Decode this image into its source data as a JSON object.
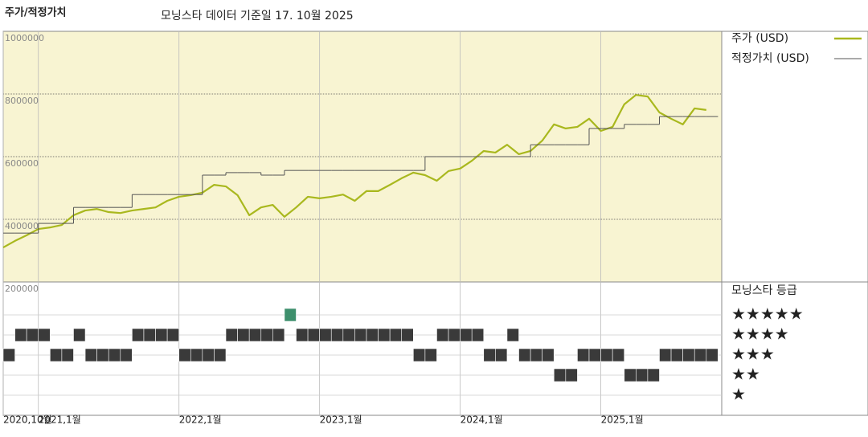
{
  "chart_data": {
    "type": "line",
    "title": "주가/적정가치",
    "subtitle": "모닝스타 데이터 기준일 17. 10월 2025",
    "x": [
      "2020-10",
      "2020-11",
      "2020-12",
      "2021-01",
      "2021-02",
      "2021-03",
      "2021-04",
      "2021-05",
      "2021-06",
      "2021-07",
      "2021-08",
      "2021-09",
      "2021-10",
      "2021-11",
      "2021-12",
      "2022-01",
      "2022-02",
      "2022-03",
      "2022-04",
      "2022-05",
      "2022-06",
      "2022-07",
      "2022-08",
      "2022-09",
      "2022-10",
      "2022-11",
      "2022-12",
      "2023-01",
      "2023-02",
      "2023-03",
      "2023-04",
      "2023-05",
      "2023-06",
      "2023-07",
      "2023-08",
      "2023-09",
      "2023-10",
      "2023-11",
      "2023-12",
      "2024-01",
      "2024-02",
      "2024-03",
      "2024-04",
      "2024-05",
      "2024-06",
      "2024-07",
      "2024-08",
      "2024-09",
      "2024-10",
      "2024-11",
      "2024-12",
      "2025-01",
      "2025-02",
      "2025-03",
      "2025-04",
      "2025-05",
      "2025-06",
      "2025-07",
      "2025-08",
      "2025-09",
      "2025-10"
    ],
    "series": [
      {
        "name": "주가 (USD)",
        "color": "#a9b81e",
        "values": [
          310000,
          331000,
          349000,
          369000,
          374000,
          382000,
          413000,
          428000,
          433000,
          423000,
          420000,
          428000,
          433000,
          438000,
          459000,
          472000,
          477000,
          485000,
          510000,
          505000,
          477000,
          413000,
          438000,
          446000,
          408000,
          438000,
          472000,
          467000,
          472000,
          479000,
          459000,
          490000,
          490000,
          510000,
          531000,
          549000,
          541000,
          523000,
          554000,
          562000,
          587000,
          618000,
          613000,
          638000,
          608000,
          618000,
          651000,
          703000,
          690000,
          695000,
          721000,
          682000,
          695000,
          767000,
          797000,
          792000,
          741000,
          721000,
          703000,
          754000,
          749000
        ]
      },
      {
        "name": "적정가치 (USD)",
        "color": "#555555",
        "step": true,
        "values": [
          356000,
          356000,
          356000,
          387000,
          387000,
          387000,
          438000,
          438000,
          438000,
          438000,
          438000,
          479000,
          479000,
          479000,
          479000,
          479000,
          479000,
          541000,
          541000,
          549000,
          549000,
          549000,
          541000,
          541000,
          556000,
          556000,
          556000,
          556000,
          556000,
          556000,
          556000,
          556000,
          556000,
          556000,
          556000,
          556000,
          600000,
          600000,
          600000,
          600000,
          600000,
          600000,
          600000,
          600000,
          600000,
          638000,
          638000,
          638000,
          638000,
          638000,
          690000,
          690000,
          690000,
          703000,
          703000,
          703000,
          728000,
          728000,
          728000,
          728000,
          728000
        ]
      }
    ],
    "ylim": [
      200000,
      1000000
    ],
    "yticks": [
      200000,
      400000,
      600000,
      800000,
      1000000
    ],
    "xticks": [
      {
        "value": "2020-10",
        "label": "2020,10월"
      },
      {
        "value": "2021-01",
        "label": "2021,1월"
      },
      {
        "value": "2022-01",
        "label": "2022,1월"
      },
      {
        "value": "2023-01",
        "label": "2023,1월"
      },
      {
        "value": "2024-01",
        "label": "2024,1월"
      },
      {
        "value": "2025-01",
        "label": "2025,1월"
      }
    ],
    "grid": true,
    "background": "#f8f4d2",
    "rating": {
      "title": "모닝스타 등급",
      "labels": [
        "★",
        "★★",
        "★★★",
        "★★★★",
        "★★★★★"
      ],
      "colors": [
        "#3a3a3a",
        "#3a3a3a",
        "#3a3a3a",
        "#3a3a3a",
        "#3d8f6c"
      ],
      "values": [
        3,
        4,
        4,
        4,
        3,
        3,
        4,
        3,
        3,
        3,
        3,
        4,
        4,
        4,
        4,
        3,
        3,
        3,
        3,
        4,
        4,
        4,
        4,
        4,
        5,
        4,
        4,
        4,
        4,
        4,
        4,
        4,
        4,
        4,
        4,
        3,
        3,
        4,
        4,
        4,
        4,
        3,
        3,
        4,
        3,
        3,
        3,
        2,
        2,
        3,
        3,
        3,
        3,
        2,
        2,
        2,
        3,
        3,
        3,
        3,
        3
      ]
    }
  }
}
